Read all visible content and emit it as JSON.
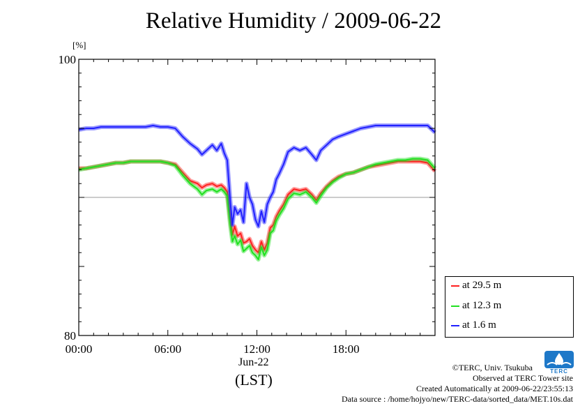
{
  "chart_data": {
    "type": "line",
    "title": "Relative Humidity / 2009-06-22",
    "ylabel": "[%]",
    "xlabel": "(LST)",
    "date_label": "Jun-22",
    "ylim": [
      80,
      100
    ],
    "xlim": [
      0,
      24
    ],
    "x_ticks": [
      "00:00",
      "06:00",
      "12:00",
      "18:00"
    ],
    "y_ticks": [
      "100",
      "80"
    ],
    "gridline_y": 90,
    "legend_position": "bottom-right",
    "series": [
      {
        "name": "at 29.5 m",
        "color": "#ff2020",
        "x": [
          0,
          0.5,
          1,
          1.5,
          2,
          2.5,
          3,
          3.5,
          4,
          4.5,
          5,
          5.5,
          6,
          6.5,
          7,
          7.5,
          8,
          8.3,
          8.6,
          9,
          9.3,
          9.6,
          9.8,
          10,
          10.2,
          10.35,
          10.5,
          10.7,
          10.9,
          11.1,
          11.3,
          11.5,
          11.7,
          11.9,
          12.1,
          12.3,
          12.5,
          12.7,
          12.9,
          13.1,
          13.3,
          13.5,
          13.8,
          14.1,
          14.5,
          14.9,
          15.3,
          15.7,
          16,
          16.3,
          16.7,
          17.1,
          17.5,
          18,
          18.5,
          19,
          19.5,
          20,
          20.5,
          21,
          21.5,
          22,
          22.5,
          23,
          23.5,
          24
        ],
        "values": [
          92.1,
          92.1,
          92.2,
          92.3,
          92.4,
          92.5,
          92.5,
          92.6,
          92.6,
          92.6,
          92.6,
          92.6,
          92.5,
          92.4,
          91.8,
          91.2,
          91.0,
          90.7,
          90.9,
          91.0,
          90.8,
          90.9,
          90.7,
          90.4,
          88.5,
          87.3,
          87.9,
          87.2,
          87.4,
          86.7,
          86.8,
          87.0,
          86.5,
          86.2,
          86.0,
          86.8,
          86.2,
          86.7,
          87.8,
          88.0,
          88.6,
          89.0,
          89.5,
          90.2,
          90.6,
          90.5,
          90.6,
          90.2,
          89.8,
          90.3,
          90.8,
          91.2,
          91.5,
          91.7,
          91.8,
          92.0,
          92.2,
          92.3,
          92.4,
          92.5,
          92.6,
          92.6,
          92.6,
          92.6,
          92.5,
          91.9
        ]
      },
      {
        "name": "at 12.3 m",
        "color": "#20e020",
        "x": [
          0,
          0.5,
          1,
          1.5,
          2,
          2.5,
          3,
          3.5,
          4,
          4.5,
          5,
          5.5,
          6,
          6.5,
          7,
          7.5,
          8,
          8.3,
          8.6,
          9,
          9.3,
          9.6,
          9.8,
          10,
          10.2,
          10.35,
          10.5,
          10.7,
          10.9,
          11.1,
          11.3,
          11.5,
          11.7,
          11.9,
          12.1,
          12.3,
          12.5,
          12.7,
          12.9,
          13.1,
          13.3,
          13.5,
          13.8,
          14.1,
          14.5,
          14.9,
          15.3,
          15.7,
          16,
          16.3,
          16.7,
          17.1,
          17.5,
          18,
          18.5,
          19,
          19.5,
          20,
          20.5,
          21,
          21.5,
          22,
          22.5,
          23,
          23.5,
          24
        ],
        "values": [
          92.0,
          92.1,
          92.2,
          92.3,
          92.4,
          92.5,
          92.5,
          92.6,
          92.6,
          92.6,
          92.6,
          92.6,
          92.5,
          92.3,
          91.6,
          91.0,
          90.6,
          90.2,
          90.5,
          90.6,
          90.4,
          90.6,
          90.4,
          90.1,
          88.0,
          86.8,
          87.2,
          86.6,
          86.9,
          86.1,
          86.3,
          86.5,
          86.0,
          85.8,
          85.5,
          86.4,
          85.8,
          86.2,
          87.4,
          87.6,
          88.3,
          88.7,
          89.2,
          89.9,
          90.3,
          90.2,
          90.4,
          90.0,
          89.6,
          90.1,
          90.7,
          91.1,
          91.4,
          91.7,
          91.8,
          92.0,
          92.2,
          92.4,
          92.5,
          92.6,
          92.7,
          92.7,
          92.8,
          92.8,
          92.7,
          92.1
        ]
      },
      {
        "name": "at 1.6 m",
        "color": "#2020ff",
        "x": [
          0,
          0.5,
          1,
          1.5,
          2,
          2.5,
          3,
          3.5,
          4,
          4.5,
          5,
          5.5,
          6,
          6.5,
          7,
          7.5,
          8,
          8.3,
          8.6,
          9,
          9.3,
          9.6,
          9.8,
          10,
          10.2,
          10.35,
          10.5,
          10.7,
          10.9,
          11.1,
          11.3,
          11.5,
          11.7,
          11.9,
          12.1,
          12.3,
          12.5,
          12.7,
          12.9,
          13.1,
          13.3,
          13.5,
          13.8,
          14.1,
          14.5,
          14.9,
          15.3,
          15.7,
          16,
          16.3,
          16.7,
          17.1,
          17.5,
          18,
          18.5,
          19,
          19.5,
          20,
          20.5,
          21,
          21.5,
          22,
          22.5,
          23,
          23.5,
          24
        ],
        "values": [
          94.9,
          95.0,
          95.0,
          95.1,
          95.1,
          95.1,
          95.1,
          95.1,
          95.1,
          95.1,
          95.2,
          95.1,
          95.1,
          95.0,
          94.4,
          93.9,
          93.5,
          93.1,
          93.4,
          93.8,
          93.4,
          93.9,
          93.2,
          92.7,
          89.8,
          88.0,
          89.3,
          88.8,
          89.1,
          88.2,
          91.0,
          90.0,
          89.5,
          88.4,
          87.9,
          89.0,
          88.2,
          89.5,
          90.0,
          90.4,
          91.3,
          91.7,
          92.4,
          93.3,
          93.6,
          93.4,
          93.6,
          93.1,
          92.7,
          93.4,
          93.8,
          94.2,
          94.4,
          94.6,
          94.8,
          95.0,
          95.1,
          95.2,
          95.2,
          95.2,
          95.2,
          95.2,
          95.2,
          95.2,
          95.2,
          94.7
        ]
      }
    ]
  },
  "credits": {
    "copyright": "©TERC, Univ. Tsukuba",
    "observed": "Observed at TERC Tower site",
    "created": "Created Automatically at 2009-06-22/23:55:13",
    "source": "Data source : /home/hojyo/new/TERC-data/sorted_data/MET.10s.dat"
  },
  "logo": {
    "name": "terc-logo",
    "text": "TERC",
    "color": "#1e78c8"
  }
}
